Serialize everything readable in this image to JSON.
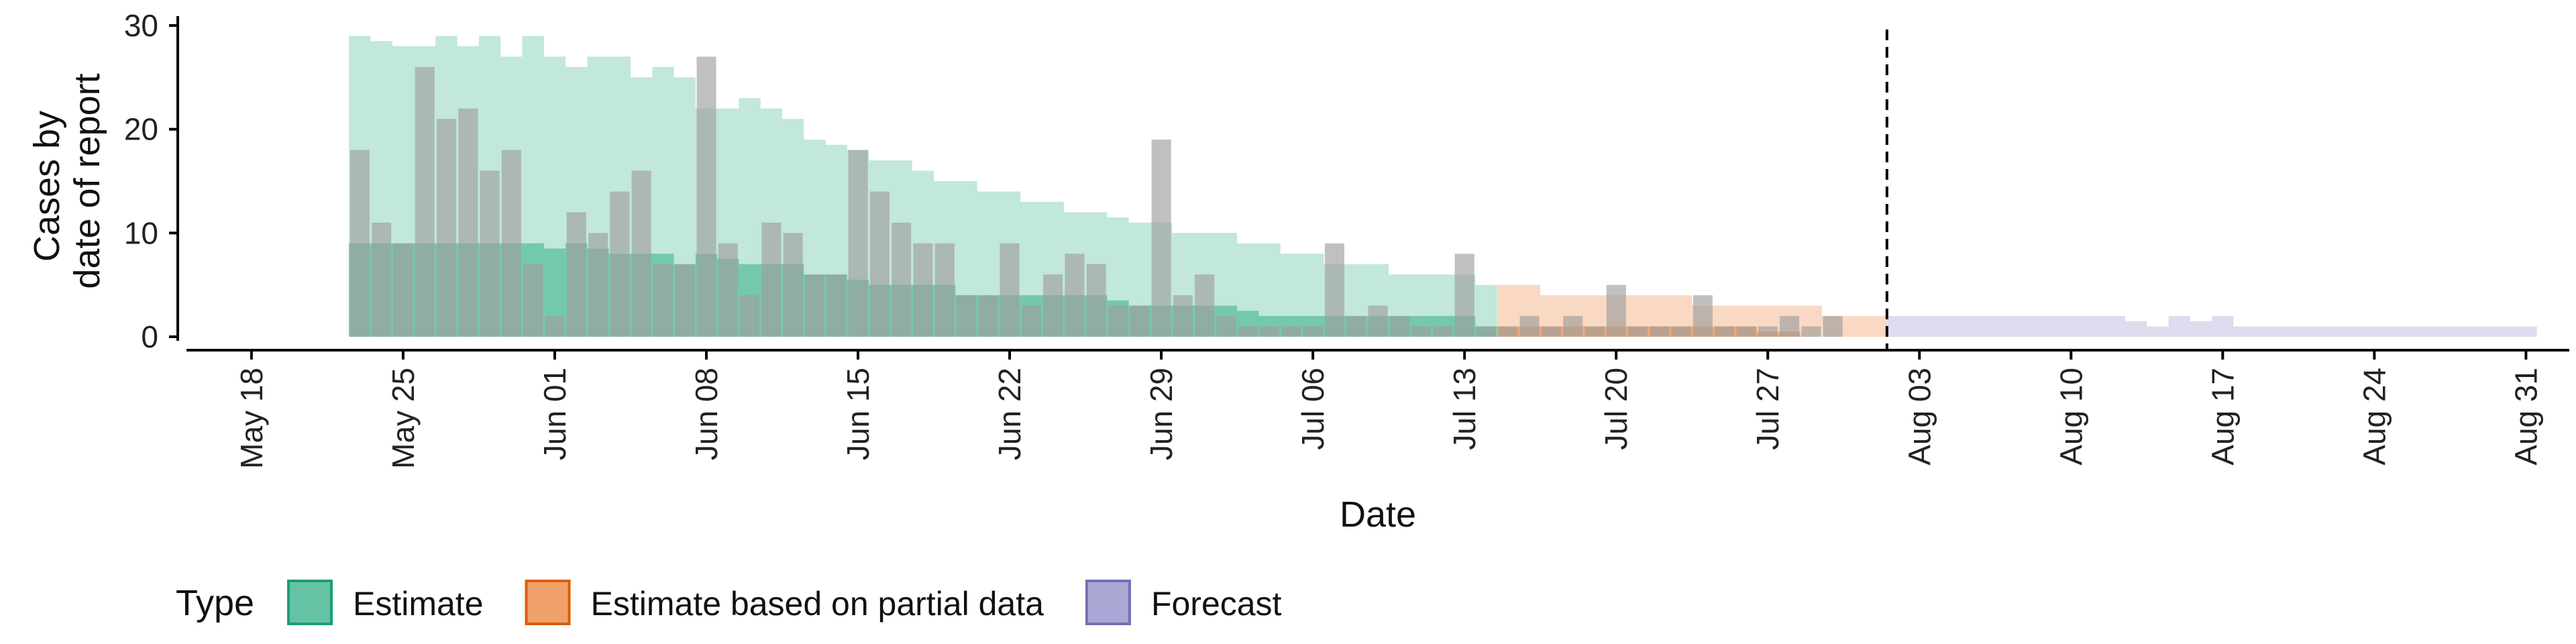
{
  "chart_data": {
    "type": "area",
    "xlabel": "Date",
    "ylabel_lines": [
      "Cases by",
      "date of report"
    ],
    "ylim": [
      0,
      30
    ],
    "y_ticks": [
      0,
      10,
      20,
      30
    ],
    "x_range": [
      "2020-05-15",
      "2020-09-02"
    ],
    "x_ticks": [
      {
        "date": "2020-05-18",
        "label": "May 18"
      },
      {
        "date": "2020-05-25",
        "label": "May 25"
      },
      {
        "date": "2020-06-01",
        "label": "Jun 01"
      },
      {
        "date": "2020-06-08",
        "label": "Jun 08"
      },
      {
        "date": "2020-06-15",
        "label": "Jun 15"
      },
      {
        "date": "2020-06-22",
        "label": "Jun 22"
      },
      {
        "date": "2020-06-29",
        "label": "Jun 29"
      },
      {
        "date": "2020-07-06",
        "label": "Jul 06"
      },
      {
        "date": "2020-07-13",
        "label": "Jul 13"
      },
      {
        "date": "2020-07-20",
        "label": "Jul 20"
      },
      {
        "date": "2020-07-27",
        "label": "Jul 27"
      },
      {
        "date": "2020-08-03",
        "label": "Aug 03"
      },
      {
        "date": "2020-08-10",
        "label": "Aug 10"
      },
      {
        "date": "2020-08-17",
        "label": "Aug 17"
      },
      {
        "date": "2020-08-24",
        "label": "Aug 24"
      },
      {
        "date": "2020-08-31",
        "label": "Aug 31"
      }
    ],
    "vline_date": "2020-08-01",
    "grid": false,
    "legend_position": "bottom-left",
    "legend": {
      "title": "Type",
      "items": [
        {
          "label": "Estimate",
          "fill": "#66C2A5",
          "stroke": "#1B9E77"
        },
        {
          "label": "Estimate based on partial data",
          "fill": "#F0A069",
          "stroke": "#D95F02"
        },
        {
          "label": "Forecast",
          "fill": "#ACA8D6",
          "stroke": "#7570B3"
        }
      ]
    },
    "observed_cases": {
      "color": "#9E9E9E",
      "points": [
        [
          "2020-05-23",
          18
        ],
        [
          "2020-05-24",
          11
        ],
        [
          "2020-05-25",
          9
        ],
        [
          "2020-05-26",
          26
        ],
        [
          "2020-05-27",
          21
        ],
        [
          "2020-05-28",
          22
        ],
        [
          "2020-05-29",
          16
        ],
        [
          "2020-05-30",
          18
        ],
        [
          "2020-05-31",
          7
        ],
        [
          "2020-06-01",
          2
        ],
        [
          "2020-06-02",
          12
        ],
        [
          "2020-06-03",
          10
        ],
        [
          "2020-06-04",
          14
        ],
        [
          "2020-06-05",
          16
        ],
        [
          "2020-06-06",
          7
        ],
        [
          "2020-06-07",
          7
        ],
        [
          "2020-06-08",
          27
        ],
        [
          "2020-06-09",
          9
        ],
        [
          "2020-06-10",
          4
        ],
        [
          "2020-06-11",
          11
        ],
        [
          "2020-06-12",
          10
        ],
        [
          "2020-06-13",
          6
        ],
        [
          "2020-06-14",
          6
        ],
        [
          "2020-06-15",
          18
        ],
        [
          "2020-06-16",
          14
        ],
        [
          "2020-06-17",
          11
        ],
        [
          "2020-06-18",
          9
        ],
        [
          "2020-06-19",
          9
        ],
        [
          "2020-06-20",
          4
        ],
        [
          "2020-06-21",
          4
        ],
        [
          "2020-06-22",
          9
        ],
        [
          "2020-06-23",
          3
        ],
        [
          "2020-06-24",
          6
        ],
        [
          "2020-06-25",
          8
        ],
        [
          "2020-06-26",
          7
        ],
        [
          "2020-06-27",
          3
        ],
        [
          "2020-06-28",
          3
        ],
        [
          "2020-06-29",
          19
        ],
        [
          "2020-06-30",
          4
        ],
        [
          "2020-07-01",
          6
        ],
        [
          "2020-07-02",
          2
        ],
        [
          "2020-07-03",
          1
        ],
        [
          "2020-07-04",
          1
        ],
        [
          "2020-07-05",
          1
        ],
        [
          "2020-07-06",
          1
        ],
        [
          "2020-07-07",
          9
        ],
        [
          "2020-07-08",
          2
        ],
        [
          "2020-07-09",
          3
        ],
        [
          "2020-07-10",
          2
        ],
        [
          "2020-07-11",
          1
        ],
        [
          "2020-07-12",
          1
        ],
        [
          "2020-07-13",
          8
        ],
        [
          "2020-07-14",
          1
        ],
        [
          "2020-07-15",
          1
        ],
        [
          "2020-07-16",
          2
        ],
        [
          "2020-07-17",
          1
        ],
        [
          "2020-07-18",
          2
        ],
        [
          "2020-07-19",
          1
        ],
        [
          "2020-07-20",
          5
        ],
        [
          "2020-07-21",
          1
        ],
        [
          "2020-07-22",
          1
        ],
        [
          "2020-07-23",
          1
        ],
        [
          "2020-07-24",
          4
        ],
        [
          "2020-07-25",
          1
        ],
        [
          "2020-07-26",
          1
        ],
        [
          "2020-07-27",
          1
        ],
        [
          "2020-07-28",
          2
        ],
        [
          "2020-07-29",
          1
        ],
        [
          "2020-07-30",
          2
        ]
      ]
    },
    "series": [
      {
        "name": "Estimate",
        "fill": "#66C2A5",
        "points": [
          [
            "2020-05-23",
            0,
            9,
            29
          ],
          [
            "2020-05-24",
            0,
            9,
            28.5
          ],
          [
            "2020-05-25",
            0,
            9,
            28
          ],
          [
            "2020-05-26",
            0,
            9,
            28
          ],
          [
            "2020-05-27",
            0,
            9,
            29
          ],
          [
            "2020-05-28",
            0,
            9,
            28
          ],
          [
            "2020-05-29",
            0,
            9,
            29
          ],
          [
            "2020-05-30",
            0,
            9,
            27
          ],
          [
            "2020-05-31",
            0,
            9,
            29
          ],
          [
            "2020-06-01",
            0,
            8.5,
            27
          ],
          [
            "2020-06-02",
            0,
            9,
            26
          ],
          [
            "2020-06-03",
            0,
            8.5,
            27
          ],
          [
            "2020-06-04",
            0,
            8,
            27
          ],
          [
            "2020-06-05",
            0,
            8,
            25
          ],
          [
            "2020-06-06",
            0,
            8,
            26
          ],
          [
            "2020-06-07",
            0,
            7,
            25
          ],
          [
            "2020-06-08",
            0,
            8,
            22
          ],
          [
            "2020-06-09",
            0,
            7.5,
            22
          ],
          [
            "2020-06-10",
            0,
            7,
            23
          ],
          [
            "2020-06-11",
            0,
            7,
            22
          ],
          [
            "2020-06-12",
            0,
            7,
            21
          ],
          [
            "2020-06-13",
            0,
            6,
            19
          ],
          [
            "2020-06-14",
            0,
            6,
            18.5
          ],
          [
            "2020-06-15",
            0,
            5.5,
            18
          ],
          [
            "2020-06-16",
            0,
            5,
            17
          ],
          [
            "2020-06-17",
            0,
            5,
            17
          ],
          [
            "2020-06-18",
            0,
            5,
            16
          ],
          [
            "2020-06-19",
            0,
            5,
            15
          ],
          [
            "2020-06-20",
            0,
            4,
            15
          ],
          [
            "2020-06-21",
            0,
            4,
            14
          ],
          [
            "2020-06-22",
            0,
            4,
            14
          ],
          [
            "2020-06-23",
            0,
            4,
            13
          ],
          [
            "2020-06-24",
            0,
            4,
            13
          ],
          [
            "2020-06-25",
            0,
            4,
            12
          ],
          [
            "2020-06-26",
            0,
            4,
            12
          ],
          [
            "2020-06-27",
            0,
            3.5,
            11.5
          ],
          [
            "2020-06-28",
            0,
            3,
            11
          ],
          [
            "2020-06-29",
            0,
            3,
            11
          ],
          [
            "2020-06-30",
            0,
            3,
            10
          ],
          [
            "2020-07-01",
            0,
            3,
            10
          ],
          [
            "2020-07-02",
            0,
            3,
            10
          ],
          [
            "2020-07-03",
            0,
            2.5,
            9
          ],
          [
            "2020-07-04",
            0,
            2,
            9
          ],
          [
            "2020-07-05",
            0,
            2,
            8
          ],
          [
            "2020-07-06",
            0,
            2,
            8
          ],
          [
            "2020-07-07",
            0,
            2,
            7
          ],
          [
            "2020-07-08",
            0,
            2,
            7
          ],
          [
            "2020-07-09",
            0,
            2,
            7
          ],
          [
            "2020-07-10",
            0,
            2,
            6
          ],
          [
            "2020-07-11",
            0,
            2,
            6
          ],
          [
            "2020-07-12",
            0,
            2,
            6
          ],
          [
            "2020-07-13",
            0,
            2,
            6
          ],
          [
            "2020-07-14",
            0,
            1,
            5
          ]
        ]
      },
      {
        "name": "Estimate based on partial data",
        "fill": "#F0A069",
        "points": [
          [
            "2020-07-15",
            0,
            1,
            5
          ],
          [
            "2020-07-16",
            0,
            1,
            5
          ],
          [
            "2020-07-17",
            0,
            1,
            4
          ],
          [
            "2020-07-18",
            0,
            1,
            4
          ],
          [
            "2020-07-19",
            0,
            1,
            4
          ],
          [
            "2020-07-20",
            0,
            1,
            4
          ],
          [
            "2020-07-21",
            0,
            1,
            4
          ],
          [
            "2020-07-22",
            0,
            1,
            4
          ],
          [
            "2020-07-23",
            0,
            1,
            4
          ],
          [
            "2020-07-24",
            0,
            1,
            3
          ],
          [
            "2020-07-25",
            0,
            1,
            3
          ],
          [
            "2020-07-26",
            0,
            1,
            3
          ],
          [
            "2020-07-27",
            0,
            0.5,
            3
          ],
          [
            "2020-07-28",
            0,
            0.5,
            3
          ],
          [
            "2020-07-29",
            0,
            0,
            3
          ],
          [
            "2020-07-30",
            0,
            0,
            2
          ],
          [
            "2020-07-31",
            0,
            0,
            2
          ],
          [
            "2020-08-01",
            0,
            0,
            2
          ]
        ]
      },
      {
        "name": "Forecast",
        "fill": "#ACA8D6",
        "points": [
          [
            "2020-08-02",
            0,
            0,
            2
          ],
          [
            "2020-08-04",
            0,
            0,
            2
          ],
          [
            "2020-08-06",
            0,
            0,
            2
          ],
          [
            "2020-08-08",
            0,
            0,
            2
          ],
          [
            "2020-08-10",
            0,
            0,
            2
          ],
          [
            "2020-08-12",
            0,
            0,
            2
          ],
          [
            "2020-08-13",
            0,
            0,
            1.5
          ],
          [
            "2020-08-14",
            0,
            0,
            1
          ],
          [
            "2020-08-15",
            0,
            0,
            2
          ],
          [
            "2020-08-16",
            0,
            0,
            1.5
          ],
          [
            "2020-08-17",
            0,
            0,
            2
          ],
          [
            "2020-08-18",
            0,
            0,
            1
          ],
          [
            "2020-08-20",
            0,
            0,
            1
          ],
          [
            "2020-08-24",
            0,
            0,
            1
          ],
          [
            "2020-08-28",
            0,
            0,
            1
          ],
          [
            "2020-08-31",
            0,
            0,
            1
          ]
        ]
      }
    ]
  }
}
